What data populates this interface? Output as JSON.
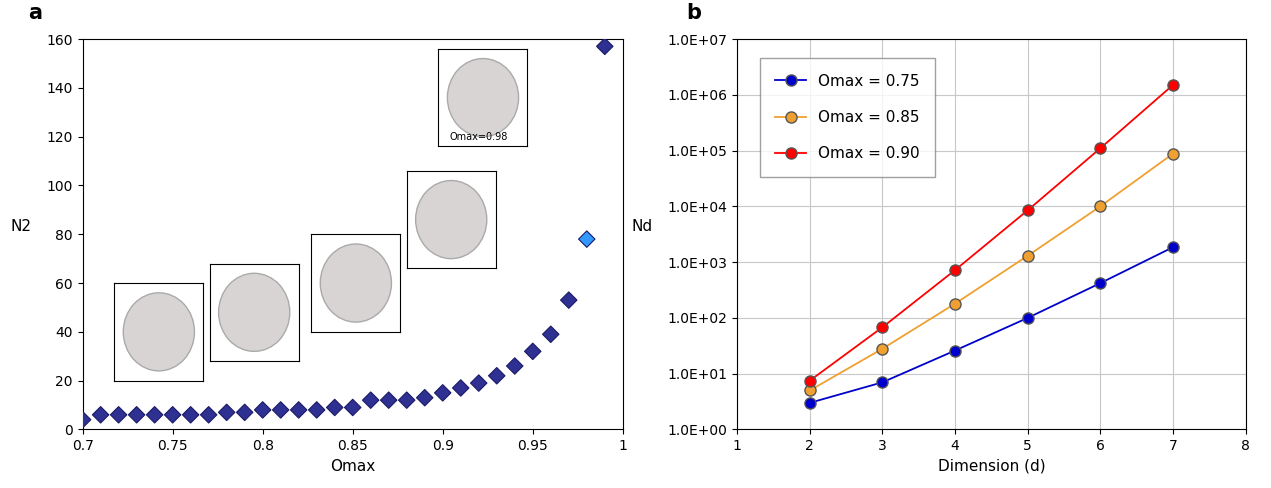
{
  "chart_data": [
    {
      "type": "scatter",
      "title": "a",
      "x_label": "Omax",
      "y_label": "N2",
      "x": [
        0.7,
        0.71,
        0.72,
        0.73,
        0.74,
        0.75,
        0.76,
        0.77,
        0.78,
        0.79,
        0.8,
        0.81,
        0.82,
        0.83,
        0.84,
        0.85,
        0.86,
        0.87,
        0.88,
        0.89,
        0.9,
        0.91,
        0.92,
        0.93,
        0.94,
        0.95,
        0.96,
        0.97,
        0.98,
        0.99
      ],
      "values": [
        4,
        6,
        6,
        6,
        6,
        6,
        6,
        6,
        7,
        7,
        8,
        8,
        8,
        8,
        9,
        9,
        12,
        12,
        12,
        13,
        15,
        17,
        19,
        22,
        26,
        32,
        39,
        53,
        78,
        157
      ],
      "colors": [
        "#2e3192",
        "#2e3192",
        "#2e3192",
        "#2e3192",
        "#2e3192",
        "#2e3192",
        "#2e3192",
        "#2e3192",
        "#2e3192",
        "#2e3192",
        "#2e3192",
        "#2e3192",
        "#2e3192",
        "#2e3192",
        "#2e3192",
        "#2e3192",
        "#2e3192",
        "#2e3192",
        "#2e3192",
        "#2e3192",
        "#2e3192",
        "#2e3192",
        "#2e3192",
        "#2e3192",
        "#2e3192",
        "#2e3192",
        "#2e3192",
        "#2e3192",
        "#3399ff",
        "#2e3192"
      ],
      "marker": "diamond",
      "xlim": [
        0.7,
        1
      ],
      "xticks": [
        0.7,
        0.75,
        0.8,
        0.85,
        0.9,
        0.95,
        1
      ],
      "ylim": [
        0,
        160
      ],
      "yticks": [
        0,
        20,
        40,
        60,
        80,
        100,
        120,
        140,
        160
      ],
      "grid": false,
      "annotations": [
        {
          "text": "Omax=0.98"
        }
      ]
    },
    {
      "type": "line",
      "title": "b",
      "x_label": "Dimension (d)",
      "y_label": "Nd",
      "x": [
        2,
        3,
        4,
        5,
        6,
        7
      ],
      "series": [
        {
          "name": "Omax = 0.75",
          "color": "#0000cc",
          "values": [
            3,
            7,
            26,
            100,
            420,
            1850
          ]
        },
        {
          "name": "Omax = 0.85",
          "color": "#f0a030",
          "values": [
            5,
            28,
            180,
            1300,
            10000,
            88000
          ]
        },
        {
          "name": "Omax = 0.90",
          "color": "#ff0000",
          "values": [
            7.5,
            68,
            720,
            8500,
            110000,
            1500000
          ]
        }
      ],
      "marker": "circle",
      "log": "y",
      "xlim": [
        1,
        8
      ],
      "xticks": [
        1,
        2,
        3,
        4,
        5,
        6,
        7,
        8
      ],
      "ylim": [
        1,
        10000000
      ],
      "yticks": [
        {
          "value": 1,
          "label": "1.0E+00"
        },
        {
          "value": 10,
          "label": "1.0E+01"
        },
        {
          "value": 100,
          "label": "1.0E+02"
        },
        {
          "value": 1000,
          "label": "1.0E+03"
        },
        {
          "value": 10000,
          "label": "1.0E+04"
        },
        {
          "value": 100000,
          "label": "1.0E+05"
        },
        {
          "value": 1000000,
          "label": "1.0E+06"
        },
        {
          "value": 10000000,
          "label": "1.0E+07"
        }
      ],
      "grid": true,
      "legend": "upper left"
    }
  ]
}
